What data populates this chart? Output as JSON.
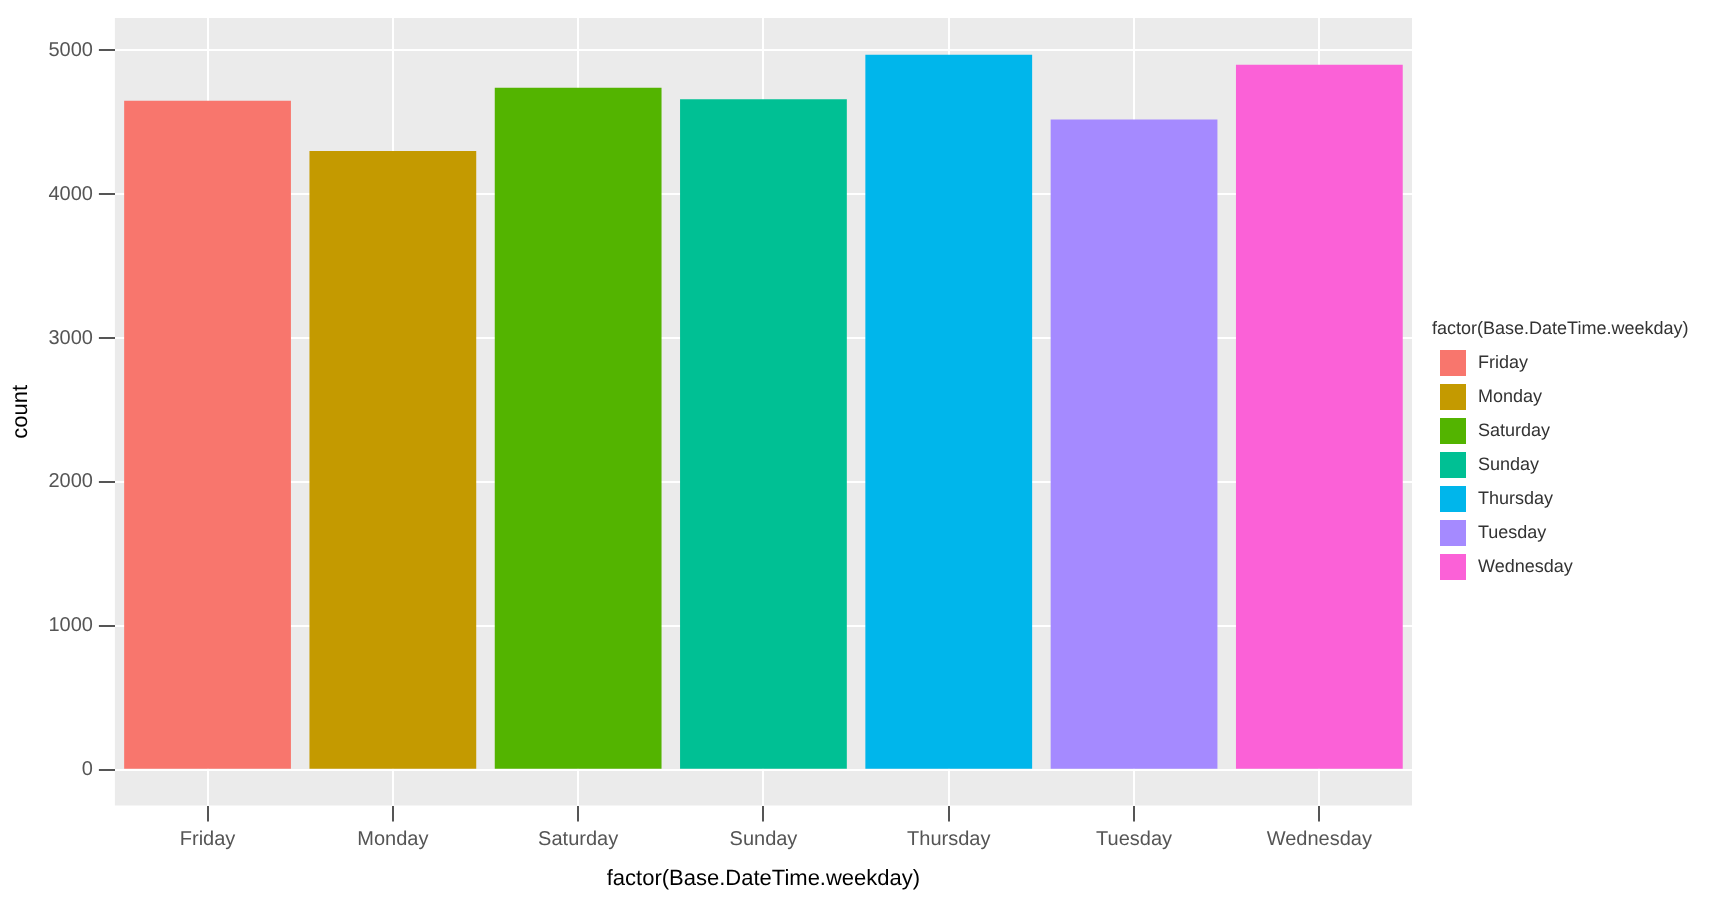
{
  "chart_data": {
    "type": "bar",
    "xlabel": "factor(Base.DateTime.weekday)",
    "ylabel": "count",
    "legend_title": "factor(Base.DateTime.weekday)",
    "categories": [
      "Friday",
      "Monday",
      "Saturday",
      "Sunday",
      "Thursday",
      "Tuesday",
      "Wednesday"
    ],
    "series": [
      {
        "name": "Friday",
        "color": "#f8766d",
        "values": [
          4650,
          null,
          null,
          null,
          null,
          null,
          null
        ]
      },
      {
        "name": "Monday",
        "color": "#c49a00",
        "values": [
          null,
          4300,
          null,
          null,
          null,
          null,
          null
        ]
      },
      {
        "name": "Saturday",
        "color": "#53b400",
        "values": [
          null,
          null,
          4740,
          null,
          null,
          null,
          null
        ]
      },
      {
        "name": "Sunday",
        "color": "#00c094",
        "values": [
          null,
          null,
          null,
          4660,
          null,
          null,
          null
        ]
      },
      {
        "name": "Thursday",
        "color": "#00b6eb",
        "values": [
          null,
          null,
          null,
          null,
          4970,
          null,
          null
        ]
      },
      {
        "name": "Tuesday",
        "color": "#a58aff",
        "values": [
          null,
          null,
          null,
          null,
          null,
          4520,
          null
        ]
      },
      {
        "name": "Wednesday",
        "color": "#fb61d7",
        "values": [
          null,
          null,
          null,
          null,
          null,
          null,
          4900
        ]
      }
    ],
    "ylim": [
      -250,
      5225
    ],
    "yticks": [
      0,
      1000,
      2000,
      3000,
      4000,
      5000
    ],
    "grid": true,
    "legend": "right"
  }
}
